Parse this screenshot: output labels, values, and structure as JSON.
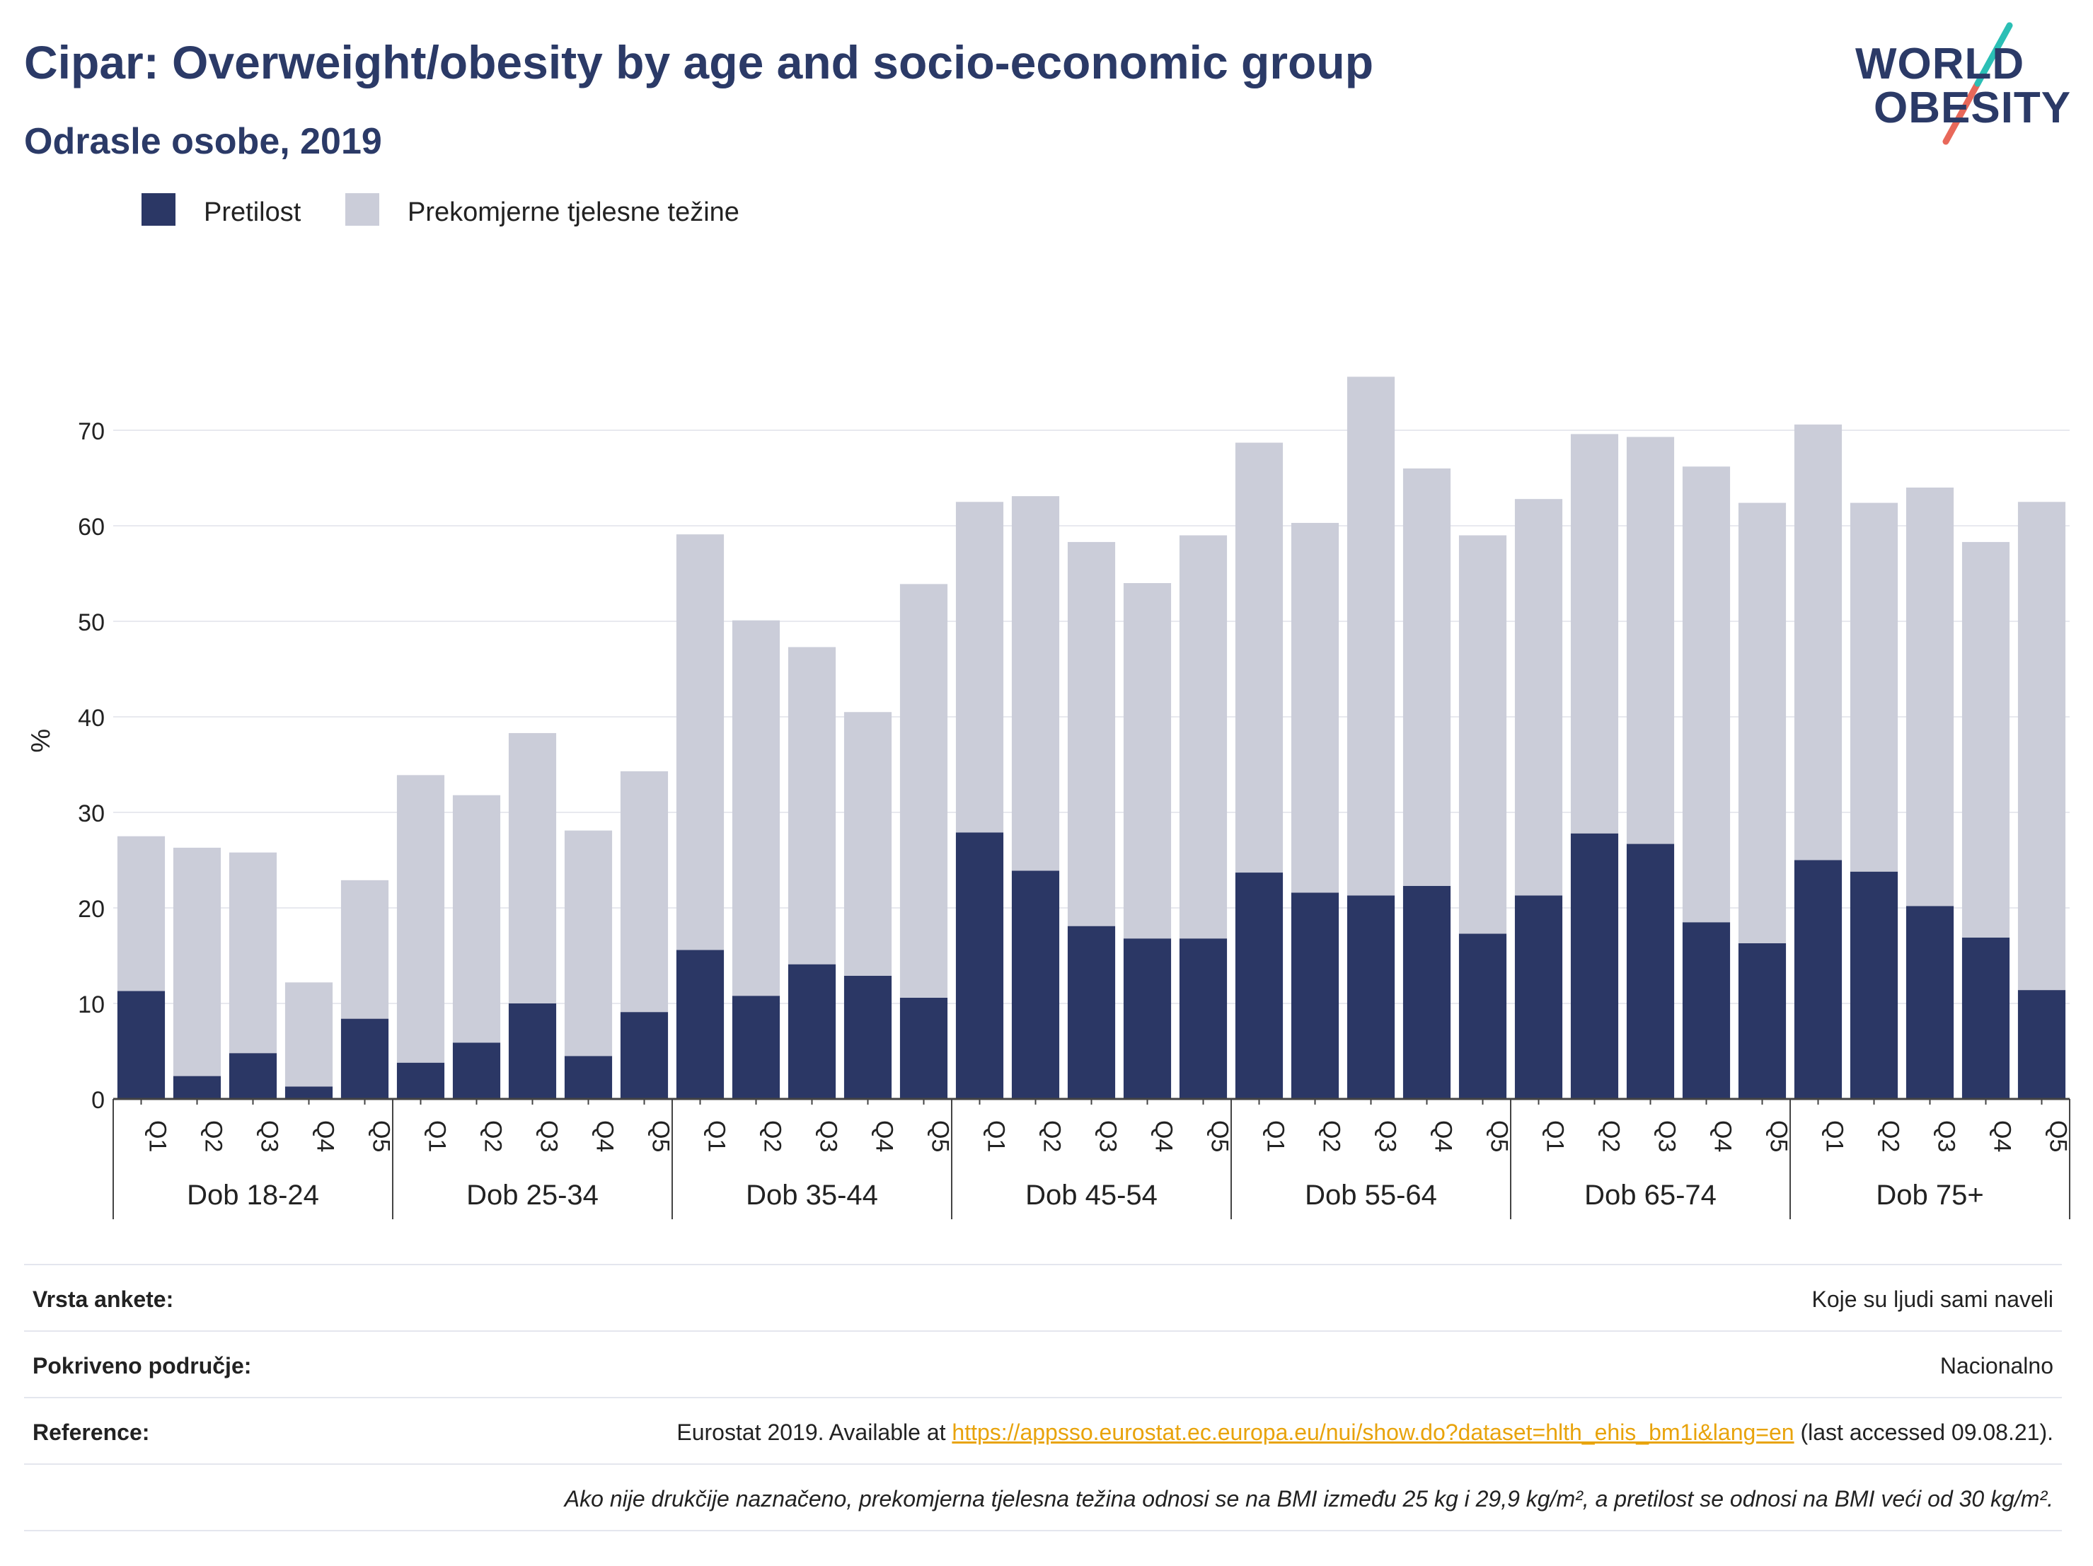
{
  "header": {
    "title": "Cipar: Overweight/obesity by age and socio-economic group",
    "subtitle": "Odrasle osobe, 2019"
  },
  "logo": {
    "line1": "WORLD",
    "line2": "OBESITY",
    "text_color": "#2b3a67",
    "slash_colors": [
      "#2bbfb5",
      "#e8685a"
    ]
  },
  "colors": {
    "obesity": "#2b3765",
    "overweight": "#cbcdd9",
    "gridline": "#e8e9ef",
    "axis": "#444444",
    "link": "#e8a30b"
  },
  "chart_data": {
    "type": "bar",
    "stacked": true,
    "title": "Cipar: Overweight/obesity by age and socio-economic group",
    "subtitle": "Odrasle osobe, 2019",
    "ylabel": "%",
    "ylim": [
      0,
      80
    ],
    "yticks": [
      0,
      10,
      20,
      30,
      40,
      50,
      60,
      70
    ],
    "grid": true,
    "legend_position": "top-left",
    "groups": [
      "Dob 18-24",
      "Dob 25-34",
      "Dob 35-44",
      "Dob 45-54",
      "Dob 55-64",
      "Dob 65-74",
      "Dob 75+"
    ],
    "quintiles": [
      "Q1",
      "Q2",
      "Q3",
      "Q4",
      "Q5"
    ],
    "series": [
      {
        "name": "Pretilost",
        "values": [
          11.3,
          2.4,
          4.8,
          1.3,
          8.4,
          3.8,
          5.9,
          10.0,
          4.5,
          9.1,
          15.6,
          10.8,
          14.1,
          12.9,
          10.6,
          27.9,
          23.9,
          18.1,
          16.8,
          16.8,
          23.7,
          21.6,
          21.3,
          22.3,
          17.3,
          21.3,
          27.8,
          26.7,
          18.5,
          16.3,
          25.0,
          23.8,
          20.2,
          16.9,
          11.4
        ]
      },
      {
        "name": "Prekomjerne tjelesne težine",
        "values": [
          16.2,
          23.9,
          21.0,
          10.9,
          14.5,
          30.1,
          25.9,
          28.3,
          23.6,
          25.2,
          43.5,
          39.3,
          33.2,
          27.6,
          43.3,
          34.6,
          39.2,
          40.2,
          37.2,
          42.2,
          45.0,
          38.7,
          54.3,
          43.7,
          41.7,
          41.5,
          41.8,
          42.6,
          47.7,
          46.1,
          45.6,
          38.6,
          43.8,
          41.4,
          51.1
        ]
      }
    ]
  },
  "table": {
    "survey_label": "Vrsta ankete:",
    "survey_value": "Koje su ljudi sami naveli",
    "coverage_label": "Pokriveno područje:",
    "coverage_value": "Nacionalno",
    "reference_label": "Reference:",
    "reference_prefix": "Eurostat 2019. Available at ",
    "reference_link": "https://appsso.eurostat.ec.europa.eu/nui/show.do?dataset=hlth_ehis_bm1i&lang=en",
    "reference_suffix": " (last accessed 09.08.21).",
    "note": "Ako nije drukčije naznačeno, prekomjerna tjelesna težina odnosi se na BMI između 25 kg i 29,9 kg/m², a pretilost se odnosi na BMI veći od 30 kg/m²."
  }
}
